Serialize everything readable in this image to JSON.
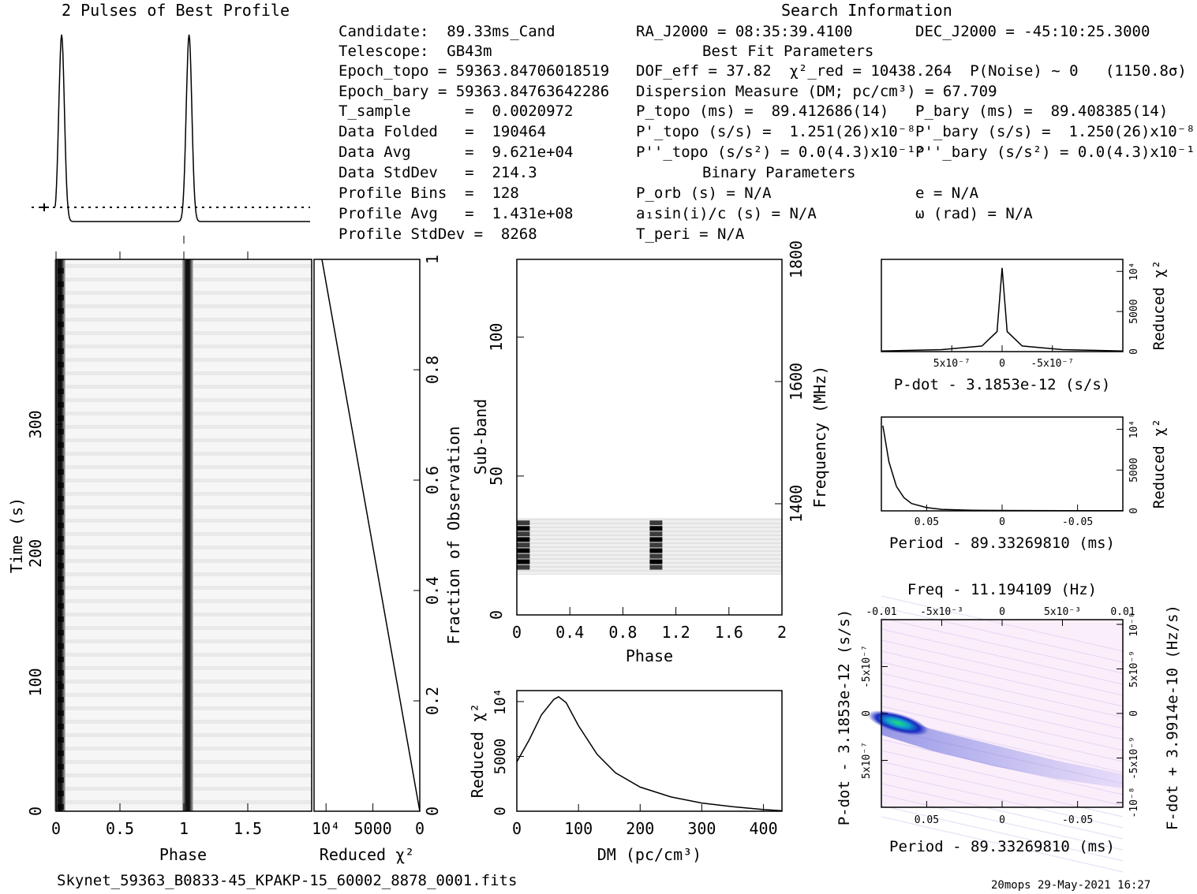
{
  "headers": {
    "profile_title": "2 Pulses of Best Profile",
    "search_info_title": "Search Information",
    "best_fit_title": "Best Fit Parameters",
    "binary_title": "Binary Parameters"
  },
  "info_left": [
    "Candidate:  89.33ms_Cand",
    "Telescope:  GB43m",
    "Epoch_topo = 59363.84706018519",
    "Epoch_bary = 59363.84763642286",
    "T_sample      =  0.0020972",
    "Data Folded   =  190464",
    "Data Avg      =  9.621e+04",
    "Data StdDev   =  214.3",
    "Profile Bins  =  128",
    "Profile Avg   =  1.431e+08",
    "Profile StdDev =  8268"
  ],
  "search_info": {
    "ra": "RA_J2000 = 08:35:39.4100",
    "dec": "DEC_J2000 = -45:10:25.3000"
  },
  "best_fit": {
    "dof_line": "DOF_eff = 37.82  χ²_red = 10438.264  P(Noise) ~ 0   (1150.8σ)",
    "dm_line": "Dispersion Measure (DM; pc/cm³) = 67.709",
    "p_topo": "P_topo (ms) =  89.412686(14)",
    "p_bary": "P_bary (ms) =  89.408385(14)",
    "pd_topo": "P'_topo (s/s) =  1.251(26)x10⁻⁸",
    "pd_bary": "P'_bary (s/s) =  1.250(26)x10⁻⁸",
    "pdd_topo": "P''_topo (s/s²) = 0.0(4.3)x10⁻¹²",
    "pdd_bary": "P''_bary (s/s²) = 0.0(4.3)x10⁻¹²"
  },
  "binary": {
    "porb": "P_orb (s) = N/A",
    "e": "e = N/A",
    "a1": "a₁sin(i)/c (s) = N/A",
    "omega": "ω (rad) = N/A",
    "tperi": "T_peri = N/A"
  },
  "footer": {
    "filename": "Skynet_59363_B0833-45_KPAKP-15_60002_8878_0001.fits",
    "stamp": "20mops 29-May-2021 16:27"
  },
  "colors": {
    "ink": "#000000",
    "grid_bg": "#ffffff",
    "map_peak": "#18d070",
    "map_mid": "#1c30c0"
  },
  "chart_data": [
    {
      "type": "line",
      "title": "2 Pulses of Best Profile",
      "x": [
        0.0,
        0.05,
        0.1,
        0.95,
        1.0,
        1.05,
        1.1,
        2.0
      ],
      "y_relative": [
        0.1,
        1.0,
        0.05,
        0.05,
        0.1,
        1.0,
        0.05,
        0.05
      ],
      "dotted_reference": "profile average"
    },
    {
      "type": "heatmap",
      "xlabel": "Phase",
      "ylabel": "Time (s)",
      "xticks": [
        "0",
        "0.5",
        "1",
        "1.5"
      ],
      "yticks": [
        "0",
        "100",
        "200",
        "300"
      ],
      "pulse_phases": [
        0.03,
        1.03
      ],
      "colormap": "grayscale"
    },
    {
      "type": "line",
      "xlabel": "Reduced χ²",
      "ylabel": "Fraction of Observation",
      "xticks": [
        "10⁴",
        "5000",
        "0"
      ],
      "yticks": [
        "0",
        "0.2",
        "0.4",
        "0.6",
        "0.8",
        "1"
      ],
      "x": [
        10438,
        5219,
        0
      ],
      "y": [
        1,
        0.5,
        0
      ]
    },
    {
      "type": "heatmap",
      "xlabel": "Phase",
      "ylabel": "Sub-band",
      "ylabel_right": "Frequency (MHz)",
      "xticks": [
        "0",
        "0.4",
        "0.8",
        "1.2",
        "1.6",
        "2"
      ],
      "yticks": [
        "0",
        "50",
        "100"
      ],
      "yticks_right": [
        "1400",
        "1600",
        "1800"
      ],
      "signal_subbands": [
        16,
        34
      ]
    },
    {
      "type": "line",
      "xlabel": "DM (pc/cm³)",
      "ylabel": "Reduced χ²",
      "xticks": [
        "0",
        "100",
        "200",
        "300",
        "400"
      ],
      "yticks": [
        "0",
        "5000",
        "10⁴"
      ],
      "x": [
        0,
        20,
        40,
        60,
        67.7,
        80,
        100,
        130,
        160,
        200,
        250,
        300,
        350,
        400,
        430
      ],
      "y": [
        4500,
        6500,
        8800,
        10200,
        10438,
        9900,
        7800,
        5200,
        3500,
        2200,
        1300,
        750,
        420,
        150,
        40
      ]
    },
    {
      "type": "line",
      "xlabel": "P-dot - 3.1853e-12 (s/s)",
      "ylabel": "Reduced χ²",
      "xticks": [
        "5x10⁻⁷",
        "0",
        "-5x10⁻⁷"
      ],
      "yticks": [
        "0",
        "5000",
        "10⁴"
      ],
      "x": [
        1.2e-06,
        6e-07,
        2e-07,
        5e-08,
        0,
        -5e-08,
        -2e-07,
        -6e-07,
        -1.2e-06
      ],
      "y": [
        80,
        250,
        700,
        2500,
        10438,
        2500,
        700,
        250,
        80
      ]
    },
    {
      "type": "line",
      "xlabel": "Period - 89.33269810 (ms)",
      "ylabel": "Reduced χ²",
      "xticks": [
        "0.05",
        "0",
        "-0.05"
      ],
      "yticks": [
        "0",
        "5000",
        "10⁴"
      ],
      "x": [
        0.079,
        0.075,
        0.07,
        0.065,
        0.06,
        0.05,
        0.04,
        0.02,
        0,
        -0.04,
        -0.08
      ],
      "y": [
        10438,
        6000,
        3000,
        1600,
        900,
        400,
        180,
        80,
        50,
        30,
        20
      ]
    },
    {
      "type": "heatmap",
      "title": "Freq - 11.194109 (Hz)",
      "xlabel": "Period - 89.33269810 (ms)",
      "ylabel": "P-dot - 3.1853e-12 (s/s)",
      "ylabel_right": "F-dot + 3.9914e-10 (Hz/s)",
      "xticks": [
        "0.05",
        "0",
        "-0.05"
      ],
      "xticks_top": [
        "-0.01",
        "-5x10⁻³",
        "0",
        "5x10⁻³",
        "0.01"
      ],
      "yticks": [
        "5x10⁻⁷",
        "0",
        "-5x10⁻⁷"
      ],
      "yticks_right": [
        "-10⁻⁸",
        "-5x10⁻⁹",
        "0",
        "5x10⁻⁹",
        "10⁻⁸"
      ]
    }
  ]
}
